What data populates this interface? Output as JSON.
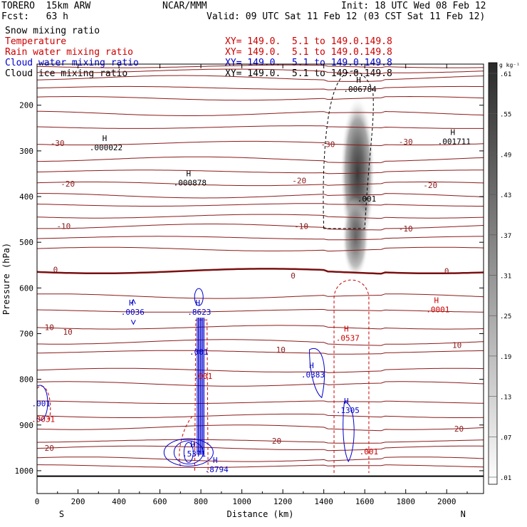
{
  "header": {
    "model": "TORERO  15km ARW",
    "center": "NCAR/MMM",
    "init": "Init: 18 UTC Wed 08 Feb 12",
    "fcst": "Fcst:   63 h",
    "valid": "Valid: 09 UTC Sat 11 Feb 12 (03 CST Sat 11 Feb 12)"
  },
  "fields": [
    {
      "name": "Snow mixing ratio",
      "color": "#000000",
      "xy": ""
    },
    {
      "name": "Temperature",
      "color": "#cc0000",
      "xy": "XY= 149.0.  5.1 to 149.0.149.8"
    },
    {
      "name": "Rain water mixing ratio",
      "color": "#cc0000",
      "xy": "XY= 149.0.  5.1 to 149.0.149.8"
    },
    {
      "name": "Cloud water mixing ratio",
      "color": "#0000cc",
      "xy": "XY= 149.0.  5.1 to 149.0.149.8"
    },
    {
      "name": "Cloud ice mixing ratio",
      "color": "#000000",
      "xy": "XY= 149.0.  5.1 to 149.0.149.8"
    }
  ],
  "chart_data": {
    "type": "cross-section contour",
    "xlabel": "Distance (km)",
    "ylabel": "Pressure (hPa)",
    "xlim": [
      0,
      2180
    ],
    "ylim": [
      1050,
      110
    ],
    "x_ticks": [
      0,
      200,
      400,
      600,
      800,
      1000,
      1200,
      1400,
      1600,
      1800,
      2000
    ],
    "y_ticks": [
      200,
      300,
      400,
      500,
      600,
      700,
      800,
      900,
      1000
    ],
    "end_labels": {
      "left": "S",
      "right": "N"
    },
    "colorbar": {
      "unit": "g kg⁻¹",
      "ticks": [
        ".01",
        ".07",
        ".13",
        ".19",
        ".25",
        ".31",
        ".37",
        ".43",
        ".49",
        ".55",
        ".61"
      ]
    },
    "temperature_labels": [
      {
        "x": 100,
        "p": 283,
        "text": "-30"
      },
      {
        "x": 1420,
        "p": 285,
        "text": "-30"
      },
      {
        "x": 1800,
        "p": 280,
        "text": "-30"
      },
      {
        "x": 150,
        "p": 372,
        "text": "-20"
      },
      {
        "x": 1280,
        "p": 365,
        "text": "-20"
      },
      {
        "x": 1920,
        "p": 375,
        "text": "-20"
      },
      {
        "x": 130,
        "p": 465,
        "text": "-10"
      },
      {
        "x": 1290,
        "p": 465,
        "text": "-10"
      },
      {
        "x": 1800,
        "p": 470,
        "text": "-10"
      },
      {
        "x": 90,
        "p": 560,
        "text": "0"
      },
      {
        "x": 1250,
        "p": 573,
        "text": "0"
      },
      {
        "x": 2000,
        "p": 563,
        "text": "0"
      },
      {
        "x": 60,
        "p": 686,
        "text": "10"
      },
      {
        "x": 150,
        "p": 696,
        "text": "10"
      },
      {
        "x": 1190,
        "p": 735,
        "text": "10"
      },
      {
        "x": 2050,
        "p": 725,
        "text": "10"
      },
      {
        "x": 60,
        "p": 950,
        "text": "20"
      },
      {
        "x": 1170,
        "p": 935,
        "text": "20"
      },
      {
        "x": 2060,
        "p": 908,
        "text": "20"
      }
    ],
    "maxima": [
      {
        "x": 330,
        "p": 283,
        "text": ".000022",
        "color": "#000000"
      },
      {
        "x": 740,
        "p": 360,
        "text": ".000878",
        "color": "#000000"
      },
      {
        "x": 1570,
        "p": 155,
        "text": ".006784",
        "color": "#000000"
      },
      {
        "x": 2030,
        "p": 270,
        "text": ".001711",
        "color": "#000000"
      },
      {
        "x": 460,
        "p": 643,
        "text": ".0036",
        "color": "#0000cc"
      },
      {
        "x": 785,
        "p": 643,
        "text": ".8623",
        "color": "#0000cc"
      },
      {
        "x": 1510,
        "p": 700,
        "text": ".0537",
        "color": "#cc0000"
      },
      {
        "x": 1950,
        "p": 638,
        "text": ".0001",
        "color": "#cc0000"
      },
      {
        "x": 1340,
        "p": 780,
        "text": ".0383",
        "color": "#0000cc"
      },
      {
        "x": 1510,
        "p": 858,
        "text": ".1305",
        "color": "#0000cc"
      },
      {
        "x": 760,
        "p": 953,
        "text": ".5371",
        "color": "#0000cc"
      },
      {
        "x": 870,
        "p": 988,
        "text": ".8794",
        "color": "#0000cc"
      }
    ],
    "min_labels": [
      {
        "x": 1610,
        "p": 405,
        "text": ".001",
        "color": "#000000"
      },
      {
        "x": 1620,
        "p": 958,
        "text": ".001",
        "color": "#cc0000"
      },
      {
        "x": 810,
        "p": 793,
        "text": ".001",
        "color": "#cc0000"
      },
      {
        "x": 790,
        "p": 740,
        "text": ".001",
        "color": "#0000cc"
      },
      {
        "x": 20,
        "p": 853,
        "text": ".001",
        "color": "#0000cc"
      },
      {
        "x": 30,
        "p": 887,
        "text": ".0031",
        "color": "#cc0000"
      }
    ]
  }
}
